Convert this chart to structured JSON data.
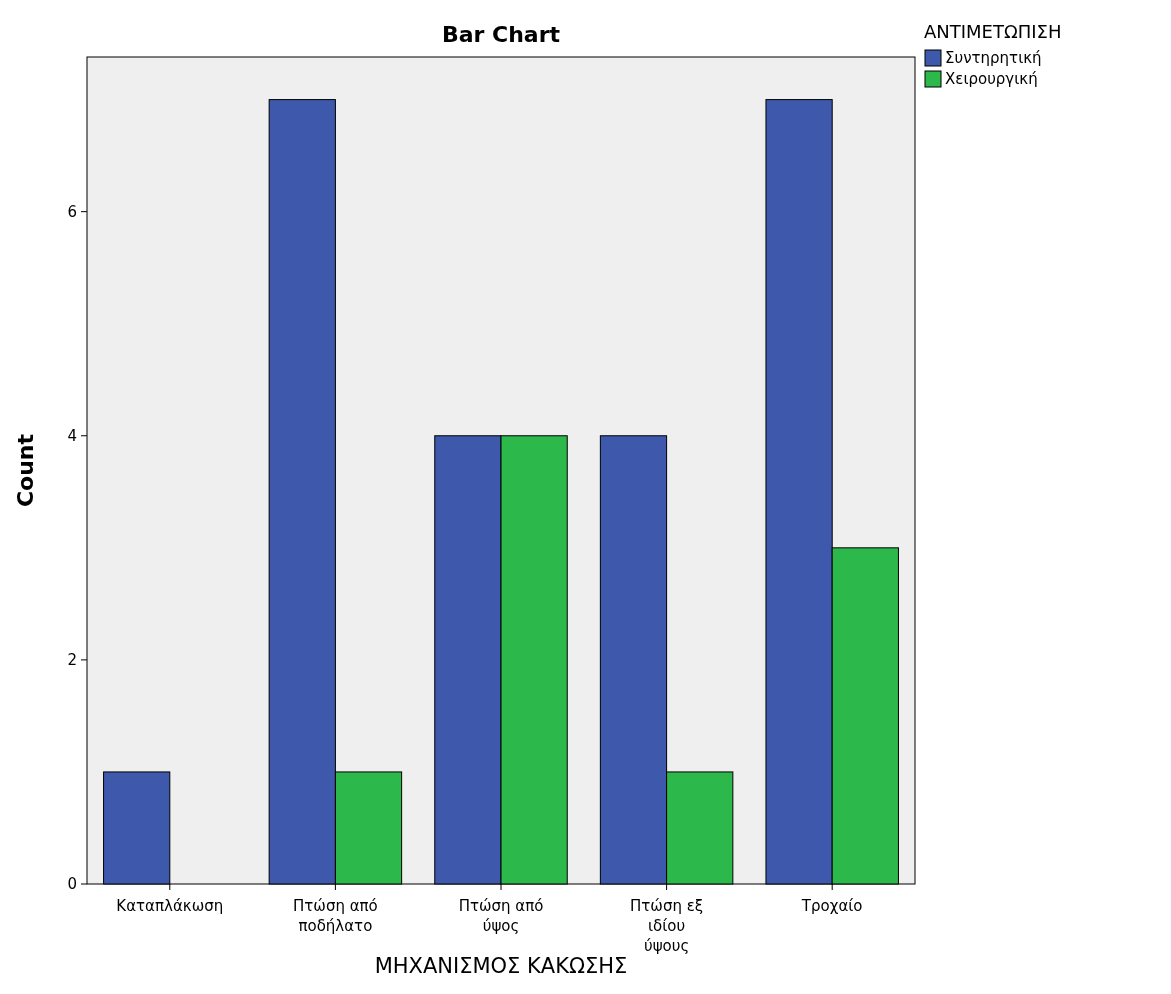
{
  "chart_data": {
    "type": "bar",
    "title": "Bar Chart",
    "xlabel": "ΜΗΧΑΝΙΣΜΟΣ ΚΑΚΩΣΗΣ",
    "ylabel": "Count",
    "legend_title": "ΑΝΤΙΜΕΤΩΠΙΣΗ",
    "categories": [
      "Καταπλάκωση",
      "Πτώση από ποδήλατο",
      "Πτώση από ύψος",
      "Πτώση εξ ιδίου ύψους",
      "Τροχαίο"
    ],
    "series": [
      {
        "name": "Συντηρητική",
        "color": "#3e58ac",
        "values": [
          1,
          7,
          4,
          4,
          7
        ]
      },
      {
        "name": "Χειρουργική",
        "color": "#2db84b",
        "values": [
          null,
          1,
          4,
          1,
          3
        ]
      }
    ],
    "ylim": [
      0,
      7.38
    ],
    "yticks": [
      0,
      2,
      4,
      6
    ],
    "grid": false,
    "legend": "top right"
  }
}
